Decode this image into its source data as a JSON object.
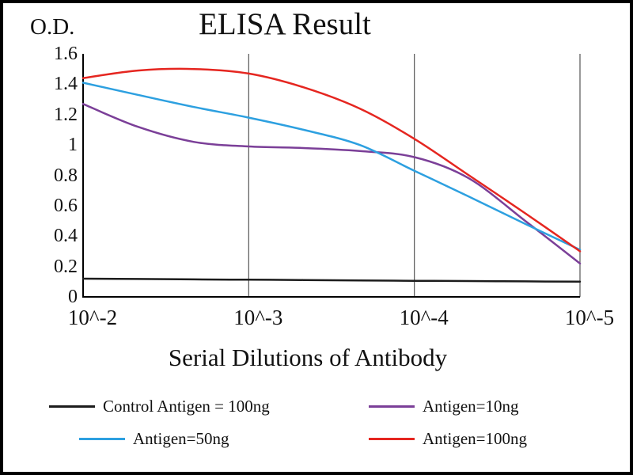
{
  "frame": {
    "background": "#ffffff",
    "border_color": "#000000",
    "grid_color": "#555555",
    "axis_color": "#000000"
  },
  "chart_data": {
    "type": "line",
    "title": "ELISA Result",
    "xlabel": "Serial Dilutions of Antibody",
    "ylabel": "O.D.",
    "ylim": [
      0,
      1.6
    ],
    "y_ticks": [
      "0",
      "0.2",
      "0.4",
      "0.6",
      "0.8",
      "1",
      "1.2",
      "1.4",
      "1.6"
    ],
    "x_tick_labels": [
      "10^-2",
      "10^-3",
      "10^-4",
      "10^-5"
    ],
    "x_unit": "tick index (0 = 10^-2, 3 = 10^-5)",
    "grid": "vertical",
    "legend_position": "bottom",
    "x": [
      0,
      0.33,
      0.67,
      1,
      1.33,
      1.67,
      2,
      2.33,
      2.67,
      3
    ],
    "series": [
      {
        "name": "Control Antigen = 100ng",
        "color": "#1c1c1c",
        "values": [
          0.12,
          0.118,
          0.115,
          0.113,
          0.111,
          0.108,
          0.106,
          0.104,
          0.102,
          0.1
        ]
      },
      {
        "name": "Antigen=10ng",
        "color": "#7b3f98",
        "values": [
          1.27,
          1.12,
          1.02,
          0.99,
          0.98,
          0.96,
          0.92,
          0.78,
          0.5,
          0.22
        ]
      },
      {
        "name": "Antigen=50ng",
        "color": "#2da0e0",
        "values": [
          1.41,
          1.33,
          1.25,
          1.18,
          1.1,
          1.0,
          0.83,
          0.66,
          0.48,
          0.31
        ]
      },
      {
        "name": "Antigen=100ng",
        "color": "#e52620",
        "values": [
          1.44,
          1.49,
          1.5,
          1.47,
          1.38,
          1.24,
          1.04,
          0.8,
          0.55,
          0.3
        ]
      }
    ]
  }
}
